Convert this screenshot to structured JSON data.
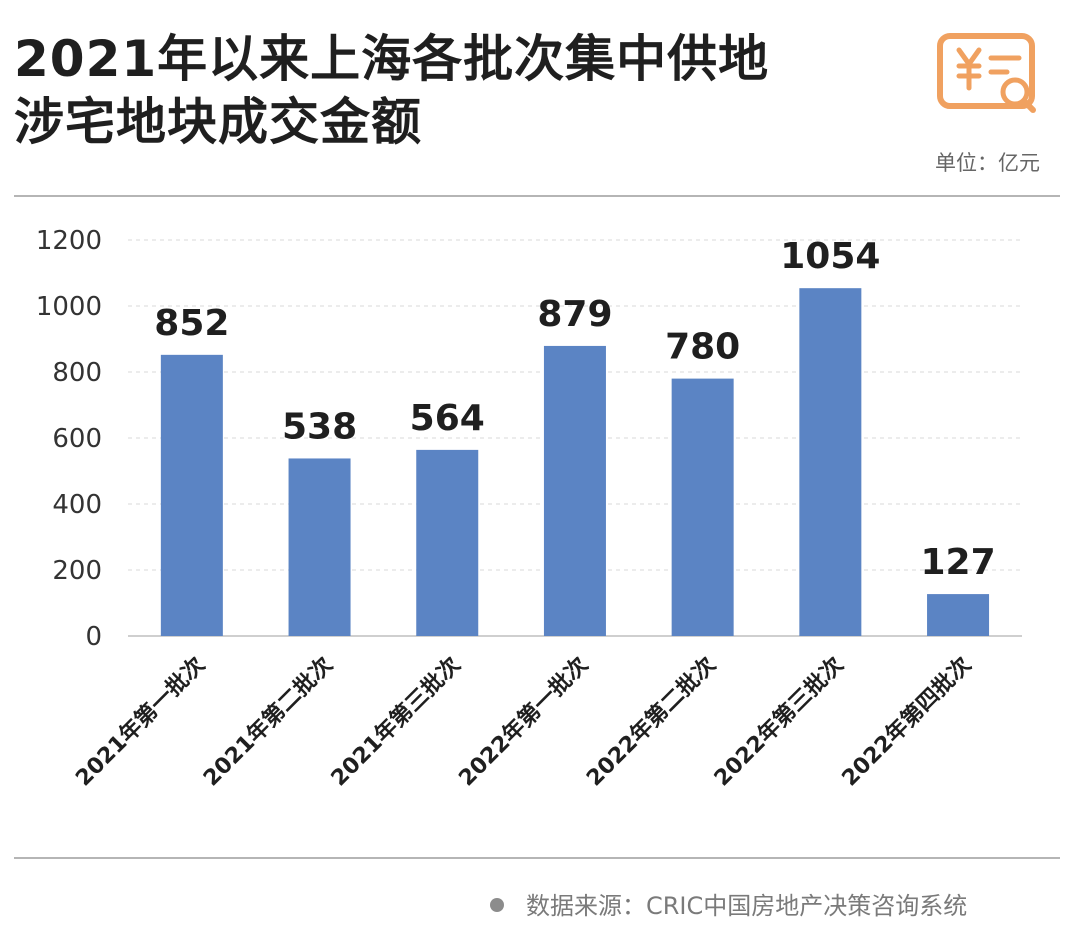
{
  "header": {
    "title_line1": "2021年以来上海各批次集中供地",
    "title_line2": "涉宅地块成交金额",
    "unit": "单位：亿元"
  },
  "icons": {
    "logo": "receipt-yuan-magnifier-icon",
    "source_bullet": "bullet-dot-icon"
  },
  "colors": {
    "bar": "#5b84c4",
    "accent": "#f0a160",
    "grid": "#d9d9d9"
  },
  "chart_data": {
    "type": "bar",
    "categories": [
      "2021年第一批次",
      "2021年第二批次",
      "2021年第三批次",
      "2022年第一批次",
      "2022年第二批次",
      "2022年第三批次",
      "2022年第四批次"
    ],
    "values": [
      852,
      538,
      564,
      879,
      780,
      1054,
      127
    ],
    "title": "2021年以来上海各批次集中供地涉宅地块成交金额",
    "ylabel": "",
    "xlabel": "",
    "ylim": [
      0,
      1200
    ],
    "yticks": [
      0,
      200,
      400,
      600,
      800,
      1000,
      1200
    ],
    "data_labels": true,
    "grid": true,
    "legend": "none"
  },
  "footer": {
    "source": "数据来源：CRIC中国房地产决策咨询系统"
  }
}
